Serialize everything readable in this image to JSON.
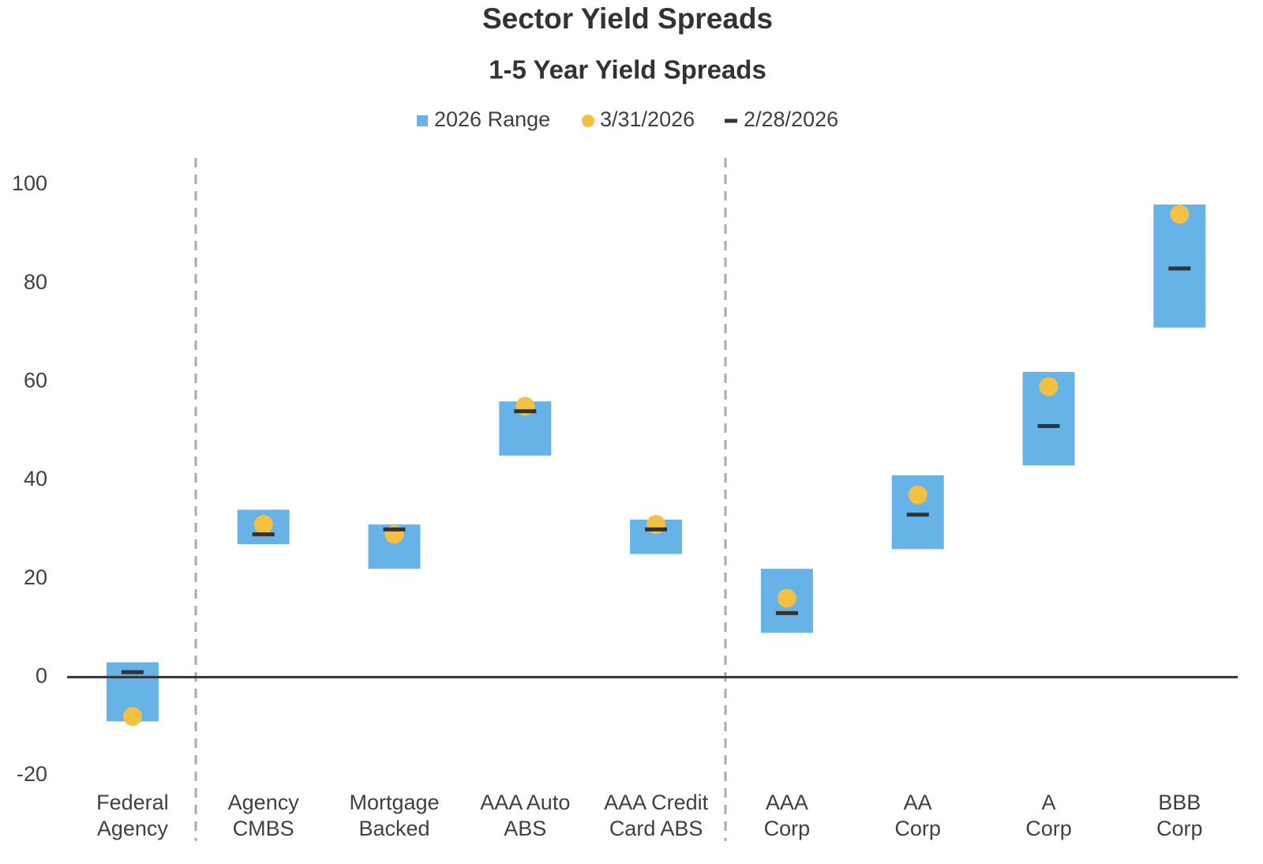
{
  "chart_data": {
    "type": "range",
    "title": "Sector Yield Spreads",
    "subtitle": "1-5 Year Yield Spreads",
    "categories": [
      [
        "Federal",
        "Agency"
      ],
      [
        "Agency",
        "CMBS"
      ],
      [
        "Mortgage",
        "Backed"
      ],
      [
        "AAA Auto",
        "ABS"
      ],
      [
        "AAA Credit",
        "Card ABS"
      ],
      [
        "AAA",
        "Corp"
      ],
      [
        "AA",
        "Corp"
      ],
      [
        "A",
        "Corp"
      ],
      [
        "BBB",
        "Corp"
      ]
    ],
    "series": [
      {
        "name": "2026 Range",
        "color": "#67b3e8",
        "mark": "bar",
        "values": [
          [
            -9,
            3
          ],
          [
            27,
            34
          ],
          [
            22,
            31
          ],
          [
            45,
            56
          ],
          [
            25,
            32
          ],
          [
            9,
            22
          ],
          [
            26,
            41
          ],
          [
            43,
            62
          ],
          [
            71,
            96
          ]
        ]
      },
      {
        "name": "3/31/2026",
        "color": "#f2c142",
        "mark": "dot",
        "values": [
          -8,
          31,
          29,
          55,
          31,
          16,
          37,
          59,
          94
        ]
      },
      {
        "name": "2/28/2026",
        "color": "#333333",
        "mark": "dash",
        "values": [
          1,
          29,
          30,
          54,
          30,
          13,
          33,
          51,
          83
        ]
      }
    ],
    "ylim": [
      -20,
      100
    ],
    "yticks": [
      -20,
      0,
      20,
      40,
      60,
      80,
      100
    ],
    "grid": false
  }
}
